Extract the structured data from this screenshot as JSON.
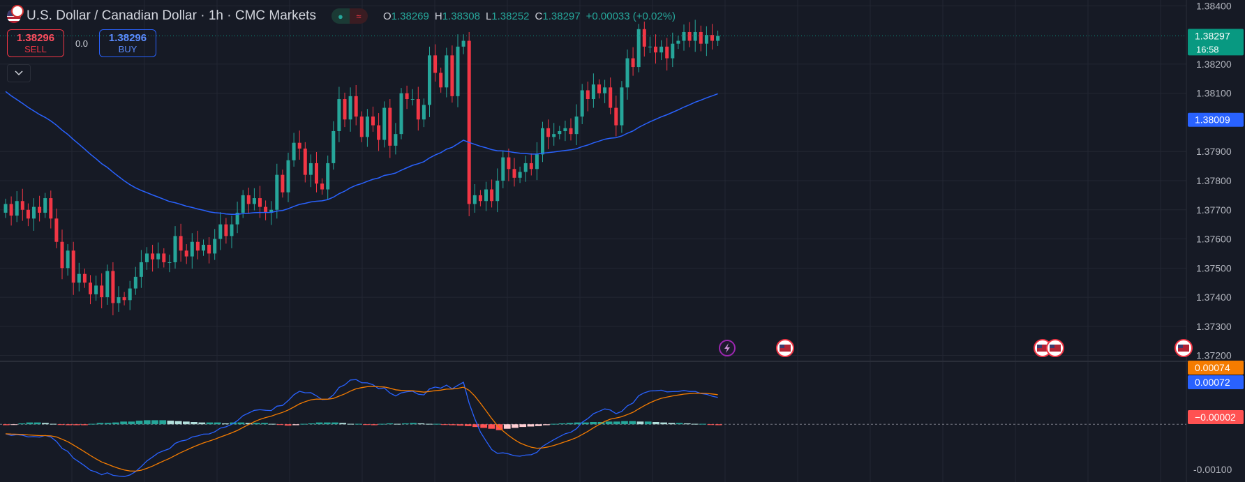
{
  "header": {
    "title": "U.S. Dollar / Canadian Dollar · 1h · CMC Markets",
    "status_dot": "●",
    "status_wave": "≈",
    "ohlc": {
      "o_label": "O",
      "o": "1.38269",
      "h_label": "H",
      "h": "1.38308",
      "l_label": "L",
      "l": "1.38252",
      "c_label": "C",
      "c": "1.38297",
      "change": "+0.00033 (+0.02%)"
    }
  },
  "trade": {
    "sell_price": "1.38296",
    "sell_label": "SELL",
    "spread": "0.0",
    "buy_price": "1.38296",
    "buy_label": "BUY",
    "collapse_icon": "chevron-down-icon"
  },
  "colors": {
    "background": "#161a25",
    "grid": "#232733",
    "up": "#26a69a",
    "down": "#f23645",
    "ma": "#2962ff",
    "macd": "#2962ff",
    "signal": "#f57c00",
    "hist_up_strong": "#26a69a",
    "hist_up_weak": "#b2dfdb",
    "hist_down_strong": "#ff5252",
    "hist_down_weak": "#ffcdd2"
  },
  "chart_data": [
    {
      "type": "candlestick",
      "title": "U.S. Dollar / Canadian Dollar",
      "y_ticks": [
        "1.38400",
        "1.38200",
        "1.38100",
        "1.37900",
        "1.37800",
        "1.37700",
        "1.37600",
        "1.37500",
        "1.37400",
        "1.37300",
        "1.37200"
      ],
      "ylim": [
        1.3718,
        1.3842
      ],
      "price_labels": [
        {
          "value": 1.38297,
          "text": "1.38297",
          "sub": "16:58",
          "color": "#089981"
        },
        {
          "value": 1.38009,
          "text": "1.38009",
          "sub": "",
          "color": "#2962ff"
        }
      ],
      "events": [
        "lightning-icon",
        "us-flag-icon",
        "us-flag-icon",
        "us-flag-icon",
        "us-flag-icon"
      ],
      "closes": [
        1.3772,
        1.3768,
        1.3773,
        1.377,
        1.3767,
        1.3771,
        1.3769,
        1.3774,
        1.3767,
        1.3759,
        1.375,
        1.3756,
        1.3745,
        1.3748,
        1.3745,
        1.3741,
        1.3744,
        1.374,
        1.3749,
        1.3738,
        1.374,
        1.3739,
        1.3743,
        1.3747,
        1.3752,
        1.3755,
        1.3753,
        1.3755,
        1.3752,
        1.3752,
        1.3761,
        1.3756,
        1.3754,
        1.3759,
        1.3756,
        1.3758,
        1.3755,
        1.376,
        1.3765,
        1.3761,
        1.3765,
        1.3769,
        1.3775,
        1.3772,
        1.3774,
        1.3771,
        1.3769,
        1.377,
        1.3782,
        1.3776,
        1.3787,
        1.3793,
        1.3791,
        1.3782,
        1.3786,
        1.3779,
        1.3777,
        1.3786,
        1.3797,
        1.3808,
        1.3801,
        1.3809,
        1.3802,
        1.3795,
        1.3802,
        1.3799,
        1.3794,
        1.3805,
        1.3792,
        1.3796,
        1.381,
        1.3808,
        1.3808,
        1.3801,
        1.3806,
        1.3823,
        1.3817,
        1.3812,
        1.3823,
        1.3809,
        1.3826,
        1.3828,
        1.3772,
        1.3775,
        1.3773,
        1.3777,
        1.3773,
        1.378,
        1.3788,
        1.3784,
        1.3781,
        1.3783,
        1.3786,
        1.3784,
        1.3789,
        1.3798,
        1.3795,
        1.3796,
        1.3797,
        1.3798,
        1.3796,
        1.3802,
        1.3811,
        1.3808,
        1.3813,
        1.381,
        1.3812,
        1.3805,
        1.3799,
        1.3812,
        1.3822,
        1.3819,
        1.3832,
        1.3826,
        1.3826,
        1.3824,
        1.3826,
        1.3822,
        1.3827,
        1.3828,
        1.3831,
        1.3828,
        1.3831,
        1.3827,
        1.383,
        1.3828,
        1.38297
      ]
    },
    {
      "type": "macd",
      "y_ticks": [
        "-0.00100"
      ],
      "ylim": [
        -0.00128,
        0.00138
      ],
      "price_labels": [
        {
          "value": 0.00074,
          "text": "0.00074",
          "color": "#f57c00"
        },
        {
          "value": 0.00072,
          "text": "0.00072",
          "color": "#2962ff"
        },
        {
          "value": -2e-05,
          "text": "−0.00002",
          "color": "#ff5252"
        }
      ],
      "histogram": [
        -2e-05,
        -1e-05,
        2e-05,
        4e-05,
        4e-05,
        3e-05,
        1e-05,
        -1e-05,
        -2e-05,
        -2e-05,
        -2e-05,
        1e-05,
        3e-05,
        3e-05,
        4e-05,
        6e-05,
        6e-05,
        8e-05,
        9e-05,
        9e-05,
        9e-05,
        8e-05,
        7e-05,
        6e-05,
        5e-05,
        4e-05,
        4e-05,
        4e-05,
        2e-05,
        4e-05,
        4e-05,
        3e-05,
        3e-05,
        3e-05,
        1e-05,
        -1e-05,
        -3e-05,
        -2e-05,
        1e-05,
        2e-05,
        4e-05,
        4e-05,
        4e-05,
        3e-05,
        1e-05,
        1e-05,
        -1e-05,
        -2e-05,
        1e-05,
        2e-05,
        1e-05,
        2e-05,
        3e-05,
        2e-05,
        1e-05,
        1e-05,
        -1e-05,
        -2e-05,
        -3e-05,
        -4e-05,
        -6e-05,
        -8e-05,
        -0.0001,
        -0.00013,
        -0.0001,
        -8e-05,
        -6e-05,
        -5e-05,
        -4e-05,
        -2e-05,
        1e-05,
        2e-05,
        3e-05,
        4e-05,
        4e-05,
        5e-05,
        5e-05,
        6e-05,
        6e-05,
        7e-05,
        7e-05,
        6e-05,
        6e-05,
        5e-05,
        4e-05,
        3e-05,
        3e-05,
        2e-05,
        1e-05,
        1e-05,
        -1e-05,
        -2e-05
      ]
    }
  ]
}
